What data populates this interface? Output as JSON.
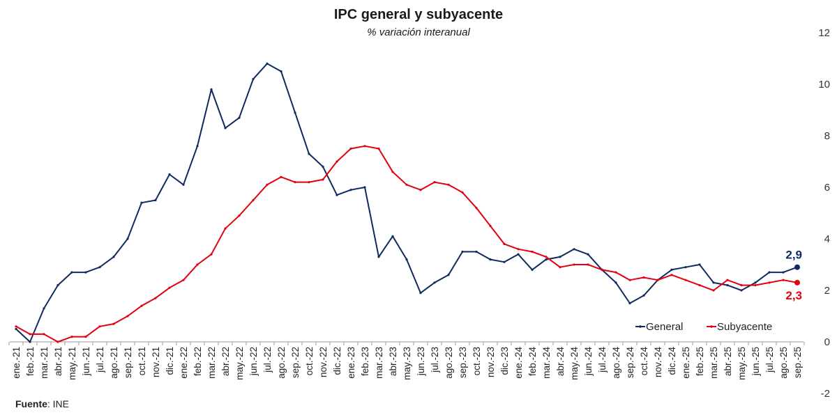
{
  "chart_data": {
    "type": "line",
    "title": "IPC general y subyacente",
    "subtitle": "% variación interanual",
    "source_label": "Fuente",
    "source_value": ": INE",
    "ylim": [
      -2,
      12
    ],
    "yticks": [
      -2,
      0,
      2,
      4,
      6,
      8,
      10,
      12
    ],
    "y_axis_position": "right",
    "legend_position": "bottom-right",
    "grid": false,
    "categories": [
      "ene.-21",
      "feb.-21",
      "mar.-21",
      "abr.-21",
      "may.-21",
      "jun.-21",
      "jul.-21",
      "ago.-21",
      "sep.-21",
      "oct.-21",
      "nov.-21",
      "dic.-21",
      "ene.-22",
      "feb.-22",
      "mar.-22",
      "abr.-22",
      "may.-22",
      "jun.-22",
      "jul.-22",
      "ago.-22",
      "sep.-22",
      "oct.-22",
      "nov.-22",
      "dic.-22",
      "ene.-23",
      "feb.-23",
      "mar.-23",
      "abr.-23",
      "may.-23",
      "jun.-23",
      "jul.-23",
      "ago.-23",
      "sep.-23",
      "oct.-23",
      "nov.-23",
      "dic.-23",
      "ene.-24",
      "feb.-24",
      "mar.-24",
      "abr.-24",
      "may.-24",
      "jun.-24",
      "jul.-24",
      "ago.-24",
      "sep.-24",
      "oct.-24",
      "nov.-24",
      "dic.-24",
      "ene.-25",
      "feb.-25",
      "mar.-25",
      "abr.-25",
      "may.-25",
      "jun.-25",
      "jul.-25",
      "ago.-25",
      "sep.-25"
    ],
    "series": [
      {
        "name": "General",
        "color": "#0f2a5e",
        "end_label": "2,9",
        "values": [
          0.5,
          0.0,
          1.3,
          2.2,
          2.7,
          2.7,
          2.9,
          3.3,
          4.0,
          5.4,
          5.5,
          6.5,
          6.1,
          7.6,
          9.8,
          8.3,
          8.7,
          10.2,
          10.8,
          10.5,
          8.9,
          7.3,
          6.8,
          5.7,
          5.9,
          6.0,
          3.3,
          4.1,
          3.2,
          1.9,
          2.3,
          2.6,
          3.5,
          3.5,
          3.2,
          3.1,
          3.4,
          2.8,
          3.2,
          3.3,
          3.6,
          3.4,
          2.8,
          2.3,
          1.5,
          1.8,
          2.4,
          2.8,
          2.9,
          3.0,
          2.3,
          2.2,
          2.0,
          2.3,
          2.7,
          2.7,
          2.9
        ]
      },
      {
        "name": "Subyacente",
        "color": "#e3000f",
        "end_label": "2,3",
        "values": [
          0.6,
          0.3,
          0.3,
          0.0,
          0.2,
          0.2,
          0.6,
          0.7,
          1.0,
          1.4,
          1.7,
          2.1,
          2.4,
          3.0,
          3.4,
          4.4,
          4.9,
          5.5,
          6.1,
          6.4,
          6.2,
          6.2,
          6.3,
          7.0,
          7.5,
          7.6,
          7.5,
          6.6,
          6.1,
          5.9,
          6.2,
          6.1,
          5.8,
          5.2,
          4.5,
          3.8,
          3.6,
          3.5,
          3.3,
          2.9,
          3.0,
          3.0,
          2.8,
          2.7,
          2.4,
          2.5,
          2.4,
          2.6,
          2.4,
          2.2,
          2.0,
          2.4,
          2.2,
          2.2,
          2.3,
          2.4,
          2.3
        ]
      }
    ]
  }
}
